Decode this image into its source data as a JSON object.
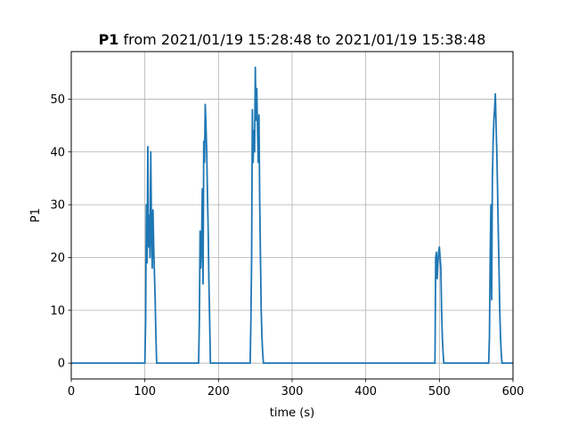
{
  "chart_data": {
    "type": "line",
    "title_bold": "P1",
    "title_rest": " from 2021/01/19 15:28:48 to 2021/01/19 15:38:48",
    "xlabel": "time (s)",
    "ylabel": "P1",
    "xlim": [
      0,
      600
    ],
    "ylim": [
      -3,
      59
    ],
    "xticks": [
      0,
      100,
      200,
      300,
      400,
      500,
      600
    ],
    "yticks": [
      0,
      10,
      20,
      30,
      40,
      50
    ],
    "grid": true,
    "series": [
      {
        "color": "#1f77b4",
        "x": [
          0,
          100,
          101,
          102,
          103,
          104,
          105,
          106,
          107,
          108,
          109,
          110,
          111,
          112,
          113,
          114,
          115,
          116,
          117,
          118,
          173,
          174,
          175,
          176,
          177,
          178,
          179,
          180,
          181,
          182,
          183,
          184,
          185,
          186,
          187,
          188,
          189,
          190,
          243,
          244,
          245,
          246,
          247,
          248,
          249,
          250,
          251,
          252,
          253,
          254,
          255,
          256,
          257,
          258,
          259,
          260,
          261,
          262,
          494,
          495,
          496,
          497,
          498,
          499,
          500,
          501,
          502,
          503,
          504,
          505,
          506,
          507,
          567,
          568,
          569,
          570,
          571,
          572,
          573,
          574,
          575,
          576,
          577,
          578,
          579,
          580,
          581,
          582,
          583,
          584,
          585,
          600
        ],
        "y": [
          0,
          0,
          8,
          30,
          19,
          41,
          22,
          28,
          20,
          40,
          25,
          18,
          29,
          22,
          17,
          12,
          5,
          0,
          0,
          0,
          0,
          8,
          25,
          18,
          22,
          33,
          15,
          42,
          38,
          49,
          45,
          40,
          32,
          25,
          15,
          8,
          0,
          0,
          0,
          8,
          20,
          48,
          38,
          44,
          40,
          56,
          46,
          52,
          44,
          38,
          47,
          30,
          20,
          10,
          5,
          2,
          0,
          0,
          0,
          20,
          21,
          16,
          19,
          21,
          22,
          20,
          18,
          10,
          5,
          2,
          0,
          0,
          0,
          5,
          20,
          30,
          12,
          35,
          42,
          46,
          48,
          51,
          45,
          40,
          33,
          25,
          18,
          10,
          5,
          2,
          0,
          0
        ]
      }
    ]
  }
}
